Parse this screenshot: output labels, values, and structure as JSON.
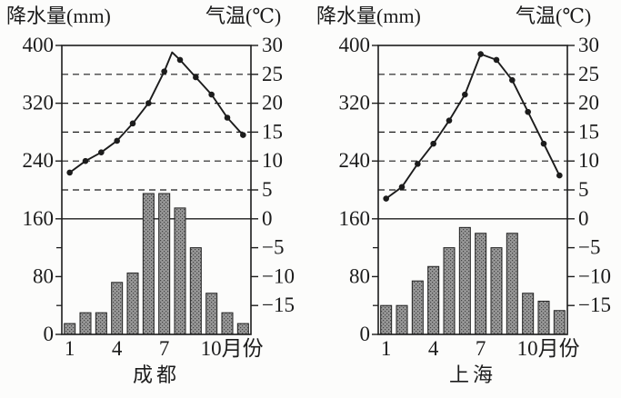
{
  "page": {
    "background": "#fcfcfb",
    "ink": "#1c1c1c",
    "bar_fill": "#979797",
    "bar_speckle": "#454545",
    "bar_outline": "#222222"
  },
  "chart_data": [
    {
      "type": "bar",
      "subtype": "climate-bar-line",
      "title": "成都",
      "ylabel_left": "降水量(mm)",
      "ylabel_right": "气温(℃)",
      "x_suffix": "月份",
      "categories": [
        1,
        2,
        3,
        4,
        5,
        6,
        7,
        8,
        9,
        10,
        11,
        12
      ],
      "x_tick_labels": [
        1,
        4,
        7,
        10
      ],
      "series": [
        {
          "name": "降水量",
          "kind": "bar",
          "unit": "mm",
          "values": [
            15,
            30,
            30,
            72,
            85,
            195,
            195,
            175,
            120,
            57,
            30,
            15
          ]
        },
        {
          "name": "气温",
          "kind": "line",
          "unit": "℃",
          "values": [
            8,
            10,
            11.5,
            13.5,
            16.5,
            20,
            25.5,
            27.5,
            24.5,
            21.5,
            17.5,
            14.5
          ]
        }
      ],
      "left_axis": {
        "label": "降水量(mm)",
        "range": [
          0,
          400
        ],
        "major_ticks": [
          400,
          320,
          240,
          160,
          80,
          0
        ],
        "minor_ticks": [
          120,
          40
        ]
      },
      "right_axis": {
        "label": "气温(℃)",
        "range": [
          -20,
          30
        ],
        "ticks": [
          30,
          25,
          20,
          15,
          10,
          5,
          0,
          -5,
          -10,
          -15
        ]
      },
      "dashed_gridlines_temp": [
        25,
        20,
        15,
        10,
        5
      ],
      "zero_line_temp": 0,
      "line_peak_overshoot": {
        "between_months": [
          7,
          8
        ],
        "temp": 28.8
      }
    },
    {
      "type": "bar",
      "subtype": "climate-bar-line",
      "title": "上海",
      "ylabel_left": "降水量(mm)",
      "ylabel_right": "气温(℃)",
      "x_suffix": "月份",
      "categories": [
        1,
        2,
        3,
        4,
        5,
        6,
        7,
        8,
        9,
        10,
        11,
        12
      ],
      "x_tick_labels": [
        1,
        4,
        7,
        10
      ],
      "series": [
        {
          "name": "降水量",
          "kind": "bar",
          "unit": "mm",
          "values": [
            40,
            40,
            74,
            94,
            120,
            148,
            140,
            120,
            140,
            57,
            46,
            33
          ]
        },
        {
          "name": "气温",
          "kind": "line",
          "unit": "℃",
          "values": [
            3.5,
            5.5,
            9.5,
            13,
            17,
            21.5,
            28.5,
            27.5,
            24,
            18.5,
            13,
            7.5
          ]
        }
      ],
      "left_axis": {
        "label": "降水量(mm)",
        "range": [
          0,
          400
        ],
        "major_ticks": [
          400,
          320,
          240,
          160,
          80,
          0
        ],
        "minor_ticks": [
          120,
          40
        ]
      },
      "right_axis": {
        "label": "气温(℃)",
        "range": [
          -20,
          30
        ],
        "ticks": [
          30,
          25,
          20,
          15,
          10,
          5,
          0,
          -5,
          -10,
          -15
        ]
      },
      "dashed_gridlines_temp": [
        25,
        20,
        15,
        10,
        5
      ],
      "zero_line_temp": 0,
      "line_peak_overshoot": null
    }
  ]
}
